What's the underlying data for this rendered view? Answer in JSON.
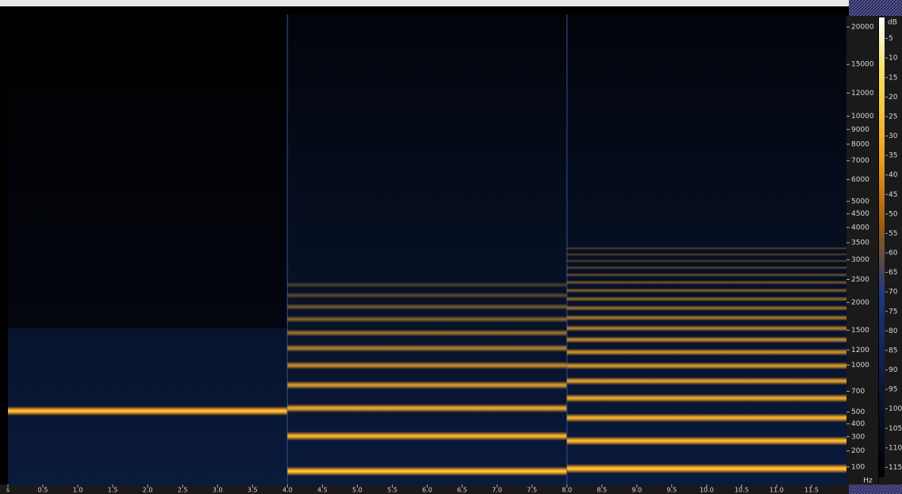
{
  "chart_data": {
    "type": "spectrogram",
    "xlim": [
      0,
      12
    ],
    "xticks": [
      {
        "value": 0,
        "label": "s"
      },
      0.5,
      {
        "value": 1,
        "label": "1.0"
      },
      1.5,
      {
        "value": 2,
        "label": "2.0"
      },
      2.5,
      {
        "value": 3,
        "label": "3.0"
      },
      3.5,
      {
        "value": 4,
        "label": "4.0"
      },
      4.5,
      {
        "value": 5,
        "label": "5.0"
      },
      5.5,
      {
        "value": 6,
        "label": "6.0"
      },
      6.5,
      {
        "value": 7,
        "label": "7.0"
      },
      7.5,
      {
        "value": 8,
        "label": "8.0"
      },
      8.5,
      {
        "value": 9,
        "label": "9.0"
      },
      9.5,
      {
        "value": 10,
        "label": "10.0"
      },
      10.5,
      {
        "value": 11,
        "label": "11.0"
      },
      11.5
    ],
    "ylim": [
      0,
      22050
    ],
    "y_scale": "mel",
    "y_unit": "Hz",
    "yticks": [
      100,
      200,
      300,
      400,
      500,
      700,
      1000,
      1200,
      1500,
      2000,
      2500,
      3000,
      3500,
      4000,
      4500,
      5000,
      6000,
      7000,
      8000,
      9000,
      10000,
      12000,
      15000,
      20000
    ],
    "colorbar_unit": "dB",
    "colorbar_lim": [
      0,
      120
    ],
    "colorbar_ticks": [
      5,
      10,
      15,
      20,
      25,
      30,
      35,
      40,
      45,
      50,
      55,
      60,
      65,
      70,
      75,
      80,
      85,
      90,
      95,
      100,
      105,
      110,
      115
    ],
    "segments": [
      {
        "start": 0,
        "end": 4,
        "harmonics": [
          510
        ]
      },
      {
        "start": 4,
        "end": 8,
        "harmonics": [
          75,
          305,
          535,
          765,
          995,
          1225,
          1455,
          1685,
          1915,
          2145,
          2375
        ]
      },
      {
        "start": 8,
        "end": 12,
        "harmonics": [
          90,
          270,
          450,
          630,
          810,
          990,
          1170,
          1350,
          1530,
          1710,
          1890,
          2070,
          2250,
          2430,
          2610,
          2790,
          2970,
          3150,
          3330
        ]
      }
    ]
  }
}
